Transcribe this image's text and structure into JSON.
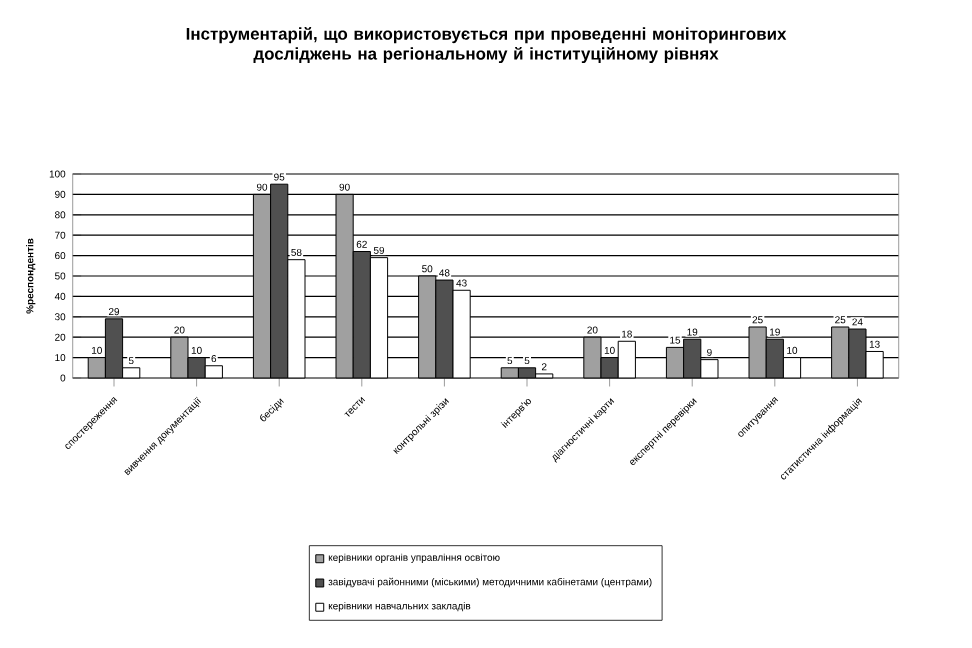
{
  "chart_data": {
    "type": "bar",
    "title": "Інструментарій, що використовується  при проведенні моніторингових досліджень на регіональному й інституційному рівнях",
    "ylabel": "%респондентів",
    "categories": [
      "спостереження",
      "вивчення документації",
      "бесіди",
      "тести",
      "контрольні зрізи",
      "інтерв'ю",
      "діагностичні карти",
      "експертні перевірки",
      "опитування",
      "статистична інформація"
    ],
    "series": [
      {
        "name": "керівники органів управління освітою",
        "color": "#a0a0a0",
        "values": [
          10,
          20,
          90,
          90,
          50,
          5,
          20,
          15,
          25,
          25
        ]
      },
      {
        "name": "завідувачі районними (міськими) методичними кабінетами (центрами)",
        "color": "#505050",
        "values": [
          29,
          10,
          95,
          62,
          48,
          5,
          10,
          19,
          19,
          24
        ]
      },
      {
        "name": "керівники навчальних закладів",
        "color": "#ffffff",
        "values": [
          5,
          6,
          58,
          59,
          43,
          2,
          18,
          9,
          10,
          13
        ]
      }
    ],
    "ylim": [
      0,
      100
    ],
    "yticks": [
      0,
      10,
      20,
      30,
      40,
      50,
      60,
      70,
      80,
      90,
      100
    ],
    "grid": "y",
    "legend": "bottom",
    "data_labels": true
  }
}
